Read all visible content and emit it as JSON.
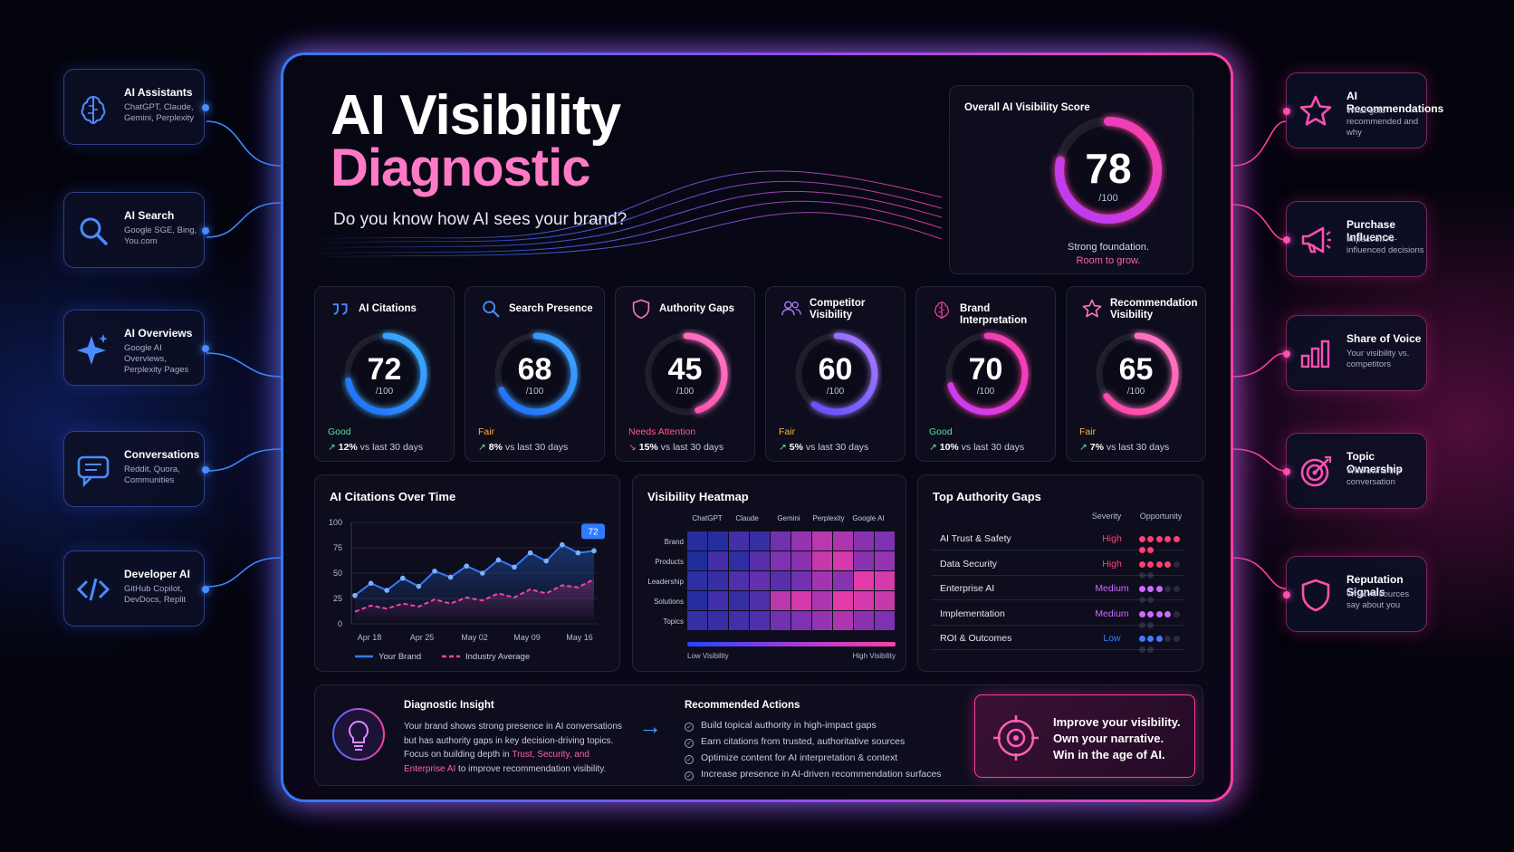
{
  "header": {
    "title_line1": "AI Visibility",
    "title_line2": "Diagnostic",
    "subtitle": "Do you know how AI sees your brand?"
  },
  "overall": {
    "label": "Overall AI Visibility Score",
    "score": "78",
    "denominator": "/100",
    "score_value": 78,
    "caption_line1": "Strong foundation.",
    "caption_line2": "Room to grow."
  },
  "left_cards": [
    {
      "title": "AI Assistants",
      "subtitle": "ChatGPT, Claude, Gemini, Perplexity",
      "icon": "brain-icon"
    },
    {
      "title": "AI Search",
      "subtitle": "Google SGE, Bing, You.com",
      "icon": "search-icon"
    },
    {
      "title": "AI Overviews",
      "subtitle": "Google AI Overviews, Perplexity Pages",
      "icon": "sparkle-icon"
    },
    {
      "title": "Conversations",
      "subtitle": "Reddit, Quora, Communities",
      "icon": "chat-icon"
    },
    {
      "title": "Developer AI",
      "subtitle": "GitHub Copilot, DevDocs, Replit",
      "icon": "code-icon"
    }
  ],
  "right_cards": [
    {
      "title": "AI Recommendations",
      "subtitle": "What gets recommended and why",
      "icon": "star-icon"
    },
    {
      "title": "Purchase Influence",
      "subtitle": "Impact on AI-influenced decisions",
      "icon": "megaphone-icon"
    },
    {
      "title": "Share of Voice",
      "subtitle": "Your visibility vs. competitors",
      "icon": "bar-chart-icon"
    },
    {
      "title": "Topic Ownership",
      "subtitle": "Who owns the conversation",
      "icon": "target-icon"
    },
    {
      "title": "Reputation Signals",
      "subtitle": "What AI sources say about you",
      "icon": "shield-icon"
    }
  ],
  "metrics": [
    {
      "name": "AI Citations",
      "value": "72",
      "score": 72,
      "den": "/100",
      "status": "Good",
      "status_color": "#5fe0a0",
      "trend_arrow": "↗",
      "trend_pct": "12%",
      "trend_text": " vs last 30 days",
      "trend_color": "#5fe0a0",
      "ring_from": "#1e6bff",
      "ring_to": "#3fb0ff",
      "icon": "quote-icon"
    },
    {
      "name": "Search Presence",
      "value": "68",
      "score": 68,
      "den": "/100",
      "status": "Fair",
      "status_color": "#ffb347",
      "trend_arrow": "↗",
      "trend_pct": "8%",
      "trend_text": " vs last 30 days",
      "trend_color": "#5fe0a0",
      "ring_from": "#1e6bff",
      "ring_to": "#42a6ff",
      "icon": "search-icon"
    },
    {
      "name": "Authority Gaps",
      "value": "45",
      "score": 45,
      "den": "/100",
      "status": "Needs Attention",
      "status_color": "#ff5a8a",
      "trend_arrow": "↘",
      "trend_pct": "15%",
      "trend_text": " vs last 30 days",
      "trend_color": "#ff5a8a",
      "ring_from": "#ff3fa4",
      "ring_to": "#ff79c6",
      "icon": "shield-icon"
    },
    {
      "name": "Competitor Visibility",
      "value": "60",
      "score": 60,
      "den": "/100",
      "status": "Fair",
      "status_color": "#ffb347",
      "trend_arrow": "↗",
      "trend_pct": "5%",
      "trend_text": " vs last 30 days",
      "trend_color": "#5fe0a0",
      "ring_from": "#5a4dff",
      "ring_to": "#a77bff",
      "icon": "users-icon"
    },
    {
      "name": "Brand Interpretation",
      "value": "70",
      "score": 70,
      "den": "/100",
      "status": "Good",
      "status_color": "#5fe0a0",
      "trend_arrow": "↗",
      "trend_pct": "10%",
      "trend_text": " vs last 30 days",
      "trend_color": "#5fe0a0",
      "ring_from": "#c23bff",
      "ring_to": "#ff3fa4",
      "icon": "brain-icon"
    },
    {
      "name": "Recommendation Visibility",
      "value": "65",
      "score": 65,
      "den": "/100",
      "status": "Fair",
      "status_color": "#ffb347",
      "trend_arrow": "↗",
      "trend_pct": "7%",
      "trend_text": " vs last 30 days",
      "trend_color": "#5fe0a0",
      "ring_from": "#ff3fa4",
      "ring_to": "#ff7ac6",
      "icon": "star-icon"
    }
  ],
  "chart_data": {
    "type": "line",
    "title": "AI Citations Over Time",
    "x_ticks": [
      "Apr 18",
      "Apr 25",
      "May 02",
      "May 09",
      "May 16"
    ],
    "y_ticks": [
      "0",
      "25",
      "50",
      "75",
      "100"
    ],
    "ylim": [
      0,
      100
    ],
    "series": [
      {
        "name": "Your Brand",
        "color": "#2f7bff",
        "values": [
          28,
          40,
          33,
          45,
          37,
          52,
          46,
          57,
          50,
          63,
          56,
          70,
          62,
          78,
          70,
          72
        ]
      },
      {
        "name": "Industry Average",
        "color": "#ff3fa4",
        "values": [
          12,
          18,
          15,
          20,
          17,
          24,
          20,
          26,
          23,
          30,
          26,
          34,
          30,
          38,
          36,
          44
        ]
      }
    ],
    "callout": "72",
    "legend": "bottom"
  },
  "heatmap": {
    "title": "Visibility Heatmap",
    "cols": [
      "ChatGPT",
      "Claude",
      "Gemini",
      "Perplexity",
      "Google AI"
    ],
    "rows": [
      "Brand",
      "Products",
      "Leadership",
      "Solutions",
      "Topics"
    ],
    "cells": [
      [
        0.1,
        0.1,
        0.25,
        0.2,
        0.45,
        0.6,
        0.75,
        0.7,
        0.55,
        0.5
      ],
      [
        0.05,
        0.25,
        0.15,
        0.35,
        0.5,
        0.55,
        0.8,
        0.85,
        0.55,
        0.6
      ],
      [
        0.15,
        0.2,
        0.3,
        0.4,
        0.35,
        0.45,
        0.65,
        0.55,
        0.9,
        0.85
      ],
      [
        0.1,
        0.25,
        0.2,
        0.3,
        0.75,
        0.85,
        0.7,
        0.9,
        0.85,
        0.8
      ],
      [
        0.2,
        0.2,
        0.25,
        0.3,
        0.45,
        0.5,
        0.6,
        0.7,
        0.55,
        0.5
      ]
    ],
    "legend_low": "Low Visibility",
    "legend_high": "High Visibility"
  },
  "gaps": {
    "title": "Top Authority Gaps",
    "col_severity": "Severity",
    "col_opportunity": "Opportunity",
    "rows": [
      {
        "name": "AI Trust & Safety",
        "severity": "High",
        "color": "#ff3f6e",
        "opp": 7
      },
      {
        "name": "Data Security",
        "severity": "High",
        "color": "#ff3f6e",
        "opp": 4
      },
      {
        "name": "Enterprise AI",
        "severity": "Medium",
        "color": "#c86bff",
        "opp": 3
      },
      {
        "name": "Implementation",
        "severity": "Medium",
        "color": "#c86bff",
        "opp": 4
      },
      {
        "name": "ROI & Outcomes",
        "severity": "Low",
        "color": "#3f7bff",
        "opp": 3
      }
    ]
  },
  "insight": {
    "title": "Diagnostic Insight",
    "line1": "Your brand shows strong presence in AI conversations",
    "line2": "but has authority gaps in key decision-driving topics.",
    "line3a": "Focus on building depth in ",
    "line3b": "Trust, Security, and",
    "line4a": "Enterprise AI",
    "line4b": " to improve recommendation visibility."
  },
  "actions": {
    "title": "Recommended Actions",
    "items": [
      "Build topical authority in high-impact gaps",
      "Earn citations from trusted, authoritative sources",
      "Optimize content for AI interpretation & context",
      "Increase presence in AI-driven recommendation surfaces"
    ]
  },
  "cta": {
    "line1": "Improve your visibility.",
    "line2": "Own your narrative.",
    "line3": "Win in the age of AI."
  }
}
